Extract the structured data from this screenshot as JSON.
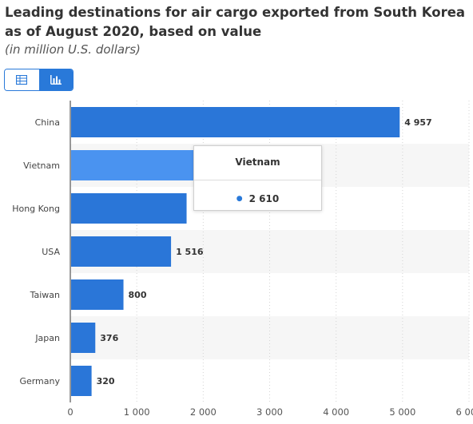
{
  "header": {
    "title": "Leading destinations for air cargo exported from South Korea as of August 2020, based on value",
    "subtitle": "(in million U.S. dollars)"
  },
  "view_toggle": {
    "table_icon": "table-icon",
    "chart_icon": "bar-chart-icon",
    "active": "chart"
  },
  "colors": {
    "bar": "#2a76d8",
    "bar_hover": "#4a93f0",
    "accent": "#2979d9",
    "band": "#f6f6f6"
  },
  "tooltip": {
    "title": "Vietnam",
    "value": "2 610"
  },
  "chart_data": {
    "type": "bar",
    "orientation": "horizontal",
    "categories": [
      "China",
      "Vietnam",
      "Hong Kong",
      "USA",
      "Taiwan",
      "Japan",
      "Germany"
    ],
    "values": [
      4957,
      2610,
      1750,
      1516,
      800,
      376,
      320
    ],
    "value_labels": [
      "4 957",
      "",
      "",
      "1 516",
      "800",
      "376",
      "320"
    ],
    "highlighted_category": "Vietnam",
    "xlim": [
      0,
      6000
    ],
    "xticks": [
      0,
      1000,
      2000,
      3000,
      4000,
      5000,
      6000
    ],
    "xtick_labels": [
      "0",
      "1 000",
      "2 000",
      "3 000",
      "4 000",
      "5 000",
      "6 000"
    ],
    "grid": true
  }
}
